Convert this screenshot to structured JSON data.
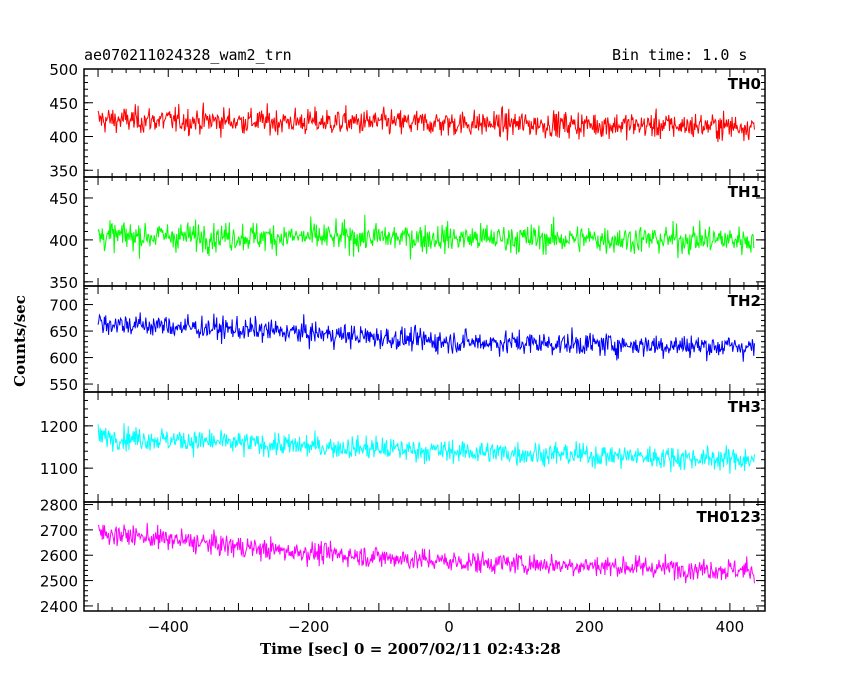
{
  "header": {
    "title": "ae070211024328_wam2_trn",
    "bin_time": "Bin time: 1.0 s"
  },
  "chart_data": {
    "type": "line",
    "xlabel": "Time [sec] 0 = 2007/02/11 02:43:28",
    "ylabel": "Counts/sec",
    "xlim": [
      -520,
      450
    ],
    "x_range_data": [
      -500,
      435
    ],
    "x_ticks": [
      "−400",
      "−200",
      "0",
      "200",
      "400"
    ],
    "x_tick_values": [
      -400,
      -200,
      0,
      200,
      400
    ],
    "panels": [
      {
        "name": "TH0",
        "color": "#ff0000",
        "ylim": [
          340,
          500
        ],
        "y_ticks": [
          "350",
          "400",
          "450",
          "500"
        ],
        "y_tick_values": [
          350,
          400,
          450,
          500
        ],
        "trend": [
          [
            -500,
            425
          ],
          [
            435,
            415
          ]
        ],
        "noise": 25
      },
      {
        "name": "TH1",
        "color": "#00ff00",
        "ylim": [
          345,
          475
        ],
        "y_ticks": [
          "350",
          "400",
          "450"
        ],
        "y_tick_values": [
          350,
          400,
          450
        ],
        "trend": [
          [
            -500,
            405
          ],
          [
            435,
            400
          ]
        ],
        "noise": 22
      },
      {
        "name": "TH2",
        "color": "#0000ff",
        "ylim": [
          535,
          735
        ],
        "y_ticks": [
          "550",
          "600",
          "650",
          "700"
        ],
        "y_tick_values": [
          550,
          600,
          650,
          700
        ],
        "trend": [
          [
            -500,
            665
          ],
          [
            -250,
            650
          ],
          [
            0,
            630
          ],
          [
            435,
            620
          ]
        ],
        "noise": 28
      },
      {
        "name": "TH3",
        "color": "#00ffff",
        "ylim": [
          1020,
          1280
        ],
        "y_ticks": [
          "1100",
          "1200"
        ],
        "y_tick_values": [
          1100,
          1200
        ],
        "trend": [
          [
            -500,
            1175
          ],
          [
            -250,
            1155
          ],
          [
            0,
            1140
          ],
          [
            435,
            1120
          ]
        ],
        "noise": 35
      },
      {
        "name": "TH0123",
        "color": "#ff00ff",
        "ylim": [
          2380,
          2810
        ],
        "y_ticks": [
          "2400",
          "2500",
          "2600",
          "2700",
          "2800"
        ],
        "y_tick_values": [
          2400,
          2500,
          2600,
          2700,
          2800
        ],
        "trend": [
          [
            -500,
            2690
          ],
          [
            -250,
            2620
          ],
          [
            0,
            2575
          ],
          [
            435,
            2540
          ]
        ],
        "noise": 55
      }
    ]
  }
}
